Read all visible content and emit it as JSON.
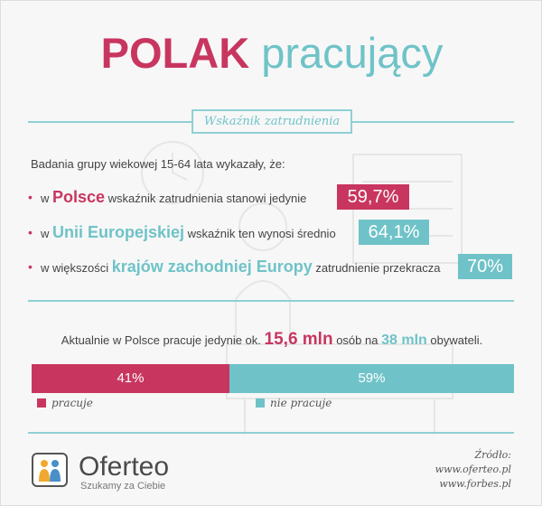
{
  "title": {
    "part1": "POLAK",
    "part2": "pracujący"
  },
  "section_label": "Wskaźnik zatrudnienia",
  "intro": "Badania grupy wiekowej 15-64 lata wykazały, że:",
  "bullets": [
    {
      "pre": "w ",
      "highlight": "Polsce",
      "post": " wskaźnik zatrudnienia stanowi jedynie",
      "value": "59,7%"
    },
    {
      "pre": "w ",
      "highlight": "Unii Europejskiej",
      "post": " wskaźnik ten wynosi średnio",
      "value": "64,1%"
    },
    {
      "pre": "w większości ",
      "highlight": "krajów zachodniej Europy",
      "post": " zatrudnienie przekracza",
      "value": "70%"
    }
  ],
  "stat": {
    "pre": "Aktualnie w Polsce pracuje jedynie ok.",
    "num1": "15,6 mln",
    "mid": "osób na",
    "num2": "38 mln",
    "post": "obywateli."
  },
  "bar": {
    "work": {
      "value": 41,
      "label": "41%",
      "legend": "pracuje",
      "color": "#c8365f"
    },
    "nowork": {
      "value": 59,
      "label": "59%",
      "legend": "nie pracuje",
      "color": "#6fc3c8"
    }
  },
  "brand": {
    "name": "Oferteo",
    "tagline": "Szukamy za Ciebie",
    "logo_icon": "oferteo-logo-icon"
  },
  "source": {
    "label": "Źródło:",
    "lines": [
      "www.oferteo.pl",
      "www.forbes.pl"
    ]
  },
  "colors": {
    "accent_red": "#c8365f",
    "accent_teal": "#6fc3c8"
  }
}
